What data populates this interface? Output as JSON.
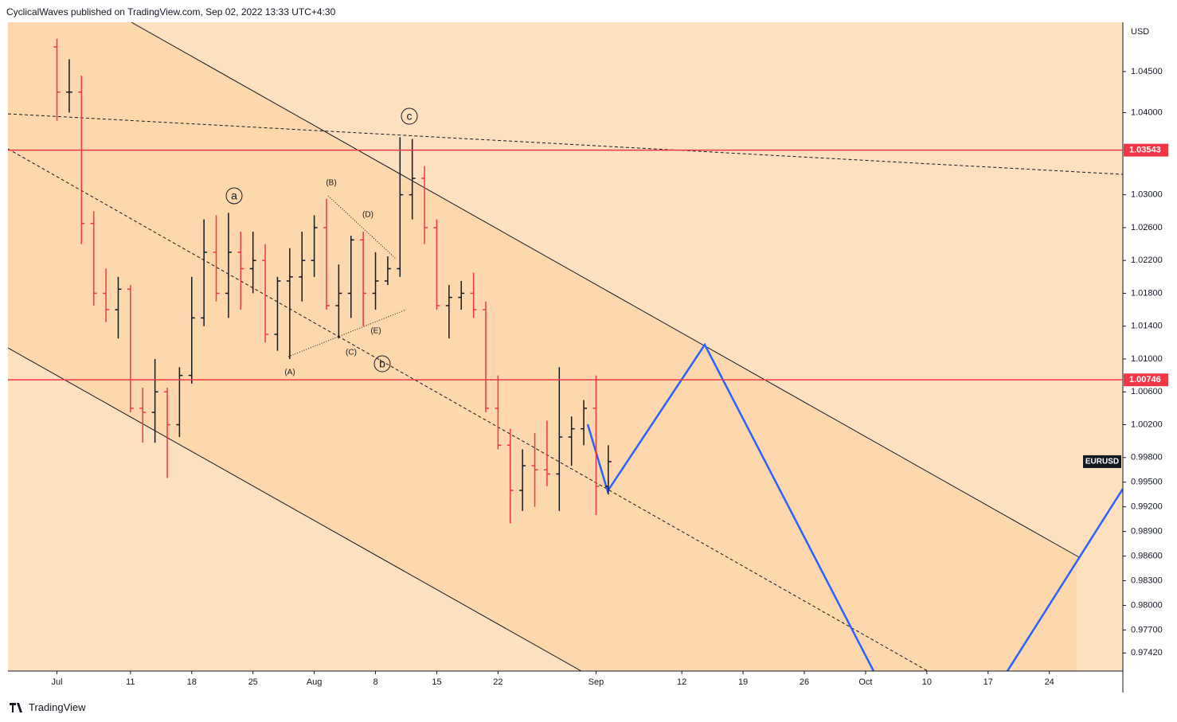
{
  "header": "CyclicalWaves published on TradingView.com, Sep 02, 2022 13:33 UTC+4:30",
  "brand": "TradingView",
  "chart_data": {
    "type": "ohlc",
    "symbol": "EURUSD",
    "currency": "USD",
    "up_color": "#131722",
    "down_color": "#f23645",
    "grid": false,
    "x": [
      0,
      1,
      2,
      3,
      4,
      5,
      6,
      7,
      8,
      9,
      10,
      11,
      12,
      13,
      14,
      15,
      16,
      17,
      18,
      19,
      20,
      21,
      22,
      23,
      24,
      25,
      26,
      27,
      28,
      29,
      30,
      31,
      32,
      33,
      34,
      35,
      36,
      37,
      38,
      39,
      40,
      41,
      42,
      43,
      44,
      45
    ],
    "open": [
      1.048,
      1.0425,
      1.0425,
      1.0265,
      1.018,
      1.016,
      1.0185,
      1.004,
      1.0035,
      1.006,
      1.002,
      1.008,
      1.015,
      1.023,
      1.018,
      1.023,
      1.021,
      1.022,
      1.013,
      1.0195,
      1.02,
      1.022,
      1.026,
      1.0165,
      1.018,
      1.0245,
      1.018,
      1.0195,
      1.021,
      1.03,
      1.032,
      1.026,
      1.0165,
      1.0175,
      1.018,
      1.016,
      1.004,
      0.9995,
      0.994,
      0.997,
      0.9965,
      0.996,
      1.0005,
      1.0015,
      1.004,
      0.9945
    ],
    "high": [
      1.049,
      1.0465,
      1.0445,
      1.028,
      1.021,
      1.02,
      1.019,
      1.0065,
      1.01,
      1.0065,
      1.009,
      1.02,
      1.027,
      1.0275,
      1.0278,
      1.0255,
      1.0255,
      1.024,
      1.02,
      1.0235,
      1.0255,
      1.0275,
      1.0295,
      1.0215,
      1.025,
      1.0255,
      1.023,
      1.0225,
      1.037,
      1.0368,
      1.0335,
      1.027,
      1.019,
      1.0195,
      1.0205,
      1.017,
      1.008,
      1.0015,
      0.999,
      1.001,
      1.0025,
      1.009,
      1.003,
      1.005,
      1.008,
      0.9995
    ],
    "low": [
      1.039,
      1.04,
      1.024,
      1.0165,
      1.0145,
      1.0125,
      1.0035,
      0.9998,
      0.9998,
      0.9955,
      1.0005,
      1.007,
      1.014,
      1.017,
      1.015,
      1.016,
      1.018,
      1.012,
      1.011,
      1.01,
      1.017,
      1.02,
      1.016,
      1.0125,
      1.015,
      1.014,
      1.016,
      1.019,
      1.02,
      1.027,
      1.024,
      1.016,
      1.0125,
      1.016,
      1.015,
      1.0035,
      0.999,
      0.99,
      0.9915,
      0.992,
      0.9945,
      0.9915,
      0.997,
      0.9995,
      0.991,
      0.9935
    ],
    "close": [
      1.0425,
      1.0425,
      1.0265,
      1.018,
      1.016,
      1.0185,
      1.004,
      1.0035,
      1.006,
      1.002,
      1.008,
      1.015,
      1.023,
      1.018,
      1.023,
      1.021,
      1.022,
      1.013,
      1.0195,
      1.02,
      1.022,
      1.026,
      1.0165,
      1.018,
      1.0245,
      1.018,
      1.0195,
      1.021,
      1.03,
      1.032,
      1.026,
      1.0165,
      1.0175,
      1.018,
      1.016,
      1.004,
      0.9995,
      0.994,
      0.997,
      0.9965,
      0.996,
      1.0005,
      1.0015,
      1.004,
      0.9945,
      0.9975
    ],
    "xlim": [
      -4,
      87
    ],
    "ylim": [
      0.972,
      1.051
    ],
    "xticks": [
      {
        "value": 0,
        "label": "Jul"
      },
      {
        "value": 6,
        "label": "11"
      },
      {
        "value": 11,
        "label": "18"
      },
      {
        "value": 16,
        "label": "25"
      },
      {
        "value": 21,
        "label": "Aug"
      },
      {
        "value": 26,
        "label": "8"
      },
      {
        "value": 31,
        "label": "15"
      },
      {
        "value": 36,
        "label": "22"
      },
      {
        "value": 44,
        "label": "Sep"
      },
      {
        "value": 51,
        "label": "12"
      },
      {
        "value": 56,
        "label": "19"
      },
      {
        "value": 61,
        "label": "26"
      },
      {
        "value": 66,
        "label": "Oct"
      },
      {
        "value": 71,
        "label": "10"
      },
      {
        "value": 76,
        "label": "17"
      },
      {
        "value": 81,
        "label": "24"
      }
    ],
    "yticks": [
      {
        "value": 1.045,
        "label": "1.04500"
      },
      {
        "value": 1.04,
        "label": "1.04000"
      },
      {
        "value": 1.03,
        "label": "1.03000"
      },
      {
        "value": 1.026,
        "label": "1.02600"
      },
      {
        "value": 1.022,
        "label": "1.02200"
      },
      {
        "value": 1.018,
        "label": "1.01800"
      },
      {
        "value": 1.014,
        "label": "1.01400"
      },
      {
        "value": 1.01,
        "label": "1.01000"
      },
      {
        "value": 1.006,
        "label": "1.00600"
      },
      {
        "value": 1.002,
        "label": "1.00200"
      },
      {
        "value": 0.998,
        "label": "0.99800"
      },
      {
        "value": 0.995,
        "label": "0.99500"
      },
      {
        "value": 0.992,
        "label": "0.99200"
      },
      {
        "value": 0.989,
        "label": "0.98900"
      },
      {
        "value": 0.986,
        "label": "0.98600"
      },
      {
        "value": 0.983,
        "label": "0.98300"
      },
      {
        "value": 0.98,
        "label": "0.98000"
      },
      {
        "value": 0.977,
        "label": "0.97700"
      },
      {
        "value": 0.9742,
        "label": "0.97420"
      }
    ],
    "levels": [
      {
        "value": 1.03543,
        "color": "#f23645"
      },
      {
        "value": 1.00746,
        "color": "#f23645"
      }
    ],
    "annotations": [
      "a",
      "b",
      "c",
      "(A)",
      "(B)",
      "(C)",
      "(D)",
      "(E)"
    ]
  }
}
